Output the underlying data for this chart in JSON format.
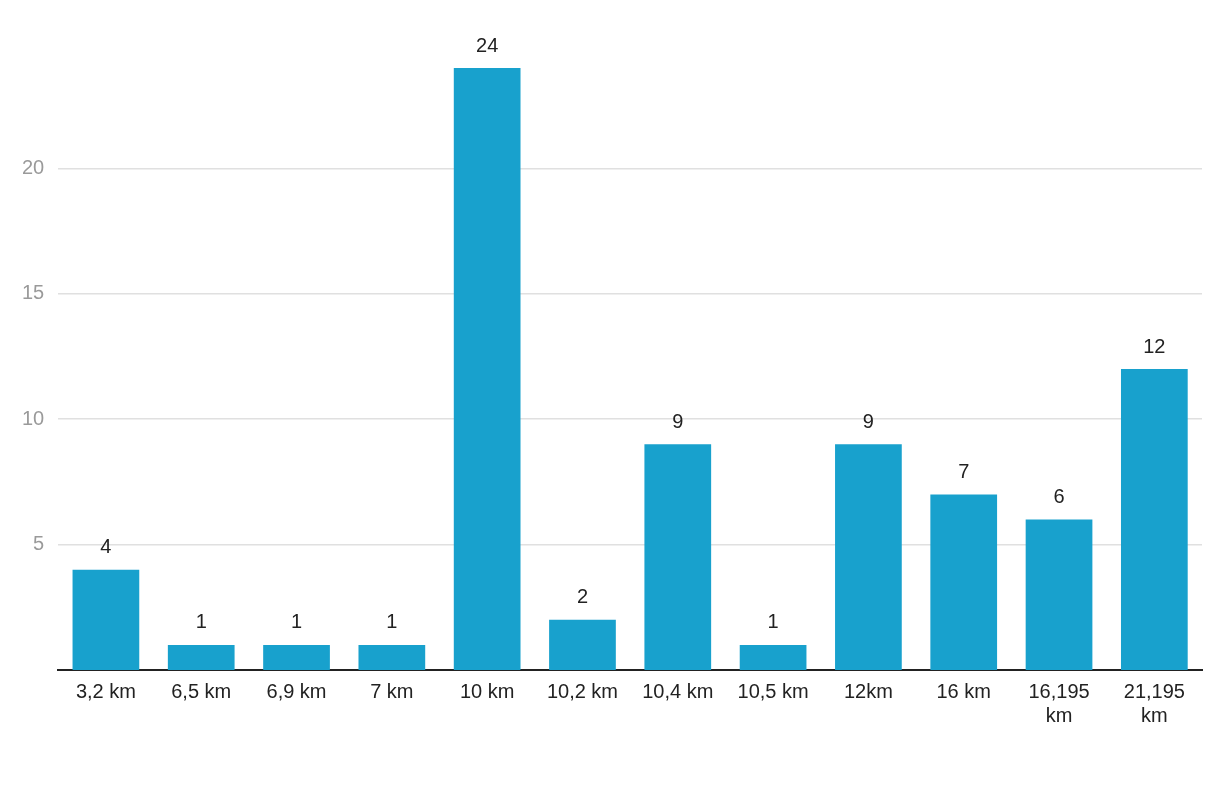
{
  "chart_data": {
    "type": "bar",
    "categories": [
      "3,2 km",
      "6,5 km",
      "6,9 km",
      "7 km",
      "10 km",
      "10,2 km",
      "10,4 km",
      "10,5 km",
      "12km",
      "16 km",
      "16,195 km",
      "21,195 km"
    ],
    "values": [
      4,
      1,
      1,
      1,
      24,
      2,
      9,
      1,
      9,
      7,
      6,
      12
    ],
    "color": "#18a1cd",
    "ylim": [
      0,
      24
    ],
    "yticks": [
      5,
      10,
      15,
      20
    ],
    "grid": "y",
    "legend": false,
    "data_labels": true
  }
}
